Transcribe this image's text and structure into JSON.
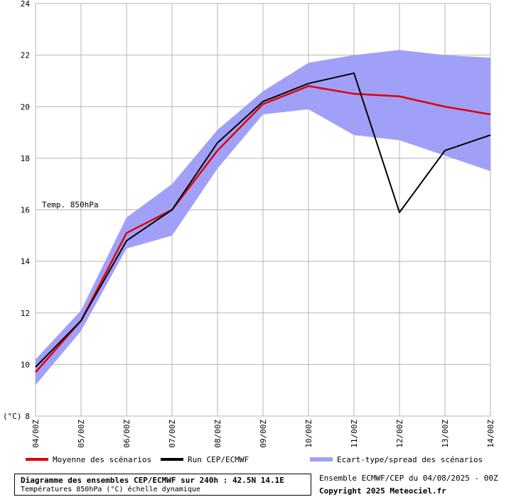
{
  "chart_data": {
    "type": "line",
    "annotation": "Temp. 850hPa",
    "ylabel": "(°C)",
    "ylim": [
      8,
      24
    ],
    "yticks": [
      8,
      10,
      12,
      14,
      16,
      18,
      20,
      22,
      24
    ],
    "categories": [
      "04/00Z",
      "05/00Z",
      "06/00Z",
      "07/00Z",
      "08/00Z",
      "09/00Z",
      "10/00Z",
      "11/00Z",
      "12/00Z",
      "13/00Z",
      "14/00Z"
    ],
    "grid": true,
    "series": [
      {
        "name": "Moyenne des scénarios",
        "type": "line",
        "color": "#e00000",
        "values": [
          9.7,
          11.7,
          15.1,
          16.0,
          18.3,
          20.1,
          20.8,
          20.5,
          20.4,
          20.0,
          19.7
        ]
      },
      {
        "name": "Run CEP/ECMWF",
        "type": "line",
        "color": "#000000",
        "values": [
          9.9,
          11.7,
          14.8,
          16.0,
          18.6,
          20.2,
          20.9,
          21.3,
          15.9,
          18.3,
          18.9
        ]
      },
      {
        "name": "Ecart-type/spread des scénarios",
        "type": "band",
        "color": "#a0a0f8",
        "upper": [
          10.2,
          12.1,
          15.7,
          17.0,
          19.1,
          20.6,
          21.7,
          22.0,
          22.2,
          22.0,
          21.9
        ],
        "lower": [
          9.2,
          11.3,
          14.5,
          15.0,
          17.6,
          19.7,
          19.9,
          18.9,
          18.7,
          18.1,
          17.5
        ]
      }
    ]
  },
  "footer": {
    "title": "Diagramme des ensembles CEP/ECMWF sur 240h : 42.5N 14.1E",
    "subtitle": "Températures 850hPa (°C) échelle dynamique",
    "run_info": "Ensemble ECMWF/CEP du 04/08/2025 - 00Z",
    "copyright": "Copyright 2025 Meteociel.fr"
  }
}
